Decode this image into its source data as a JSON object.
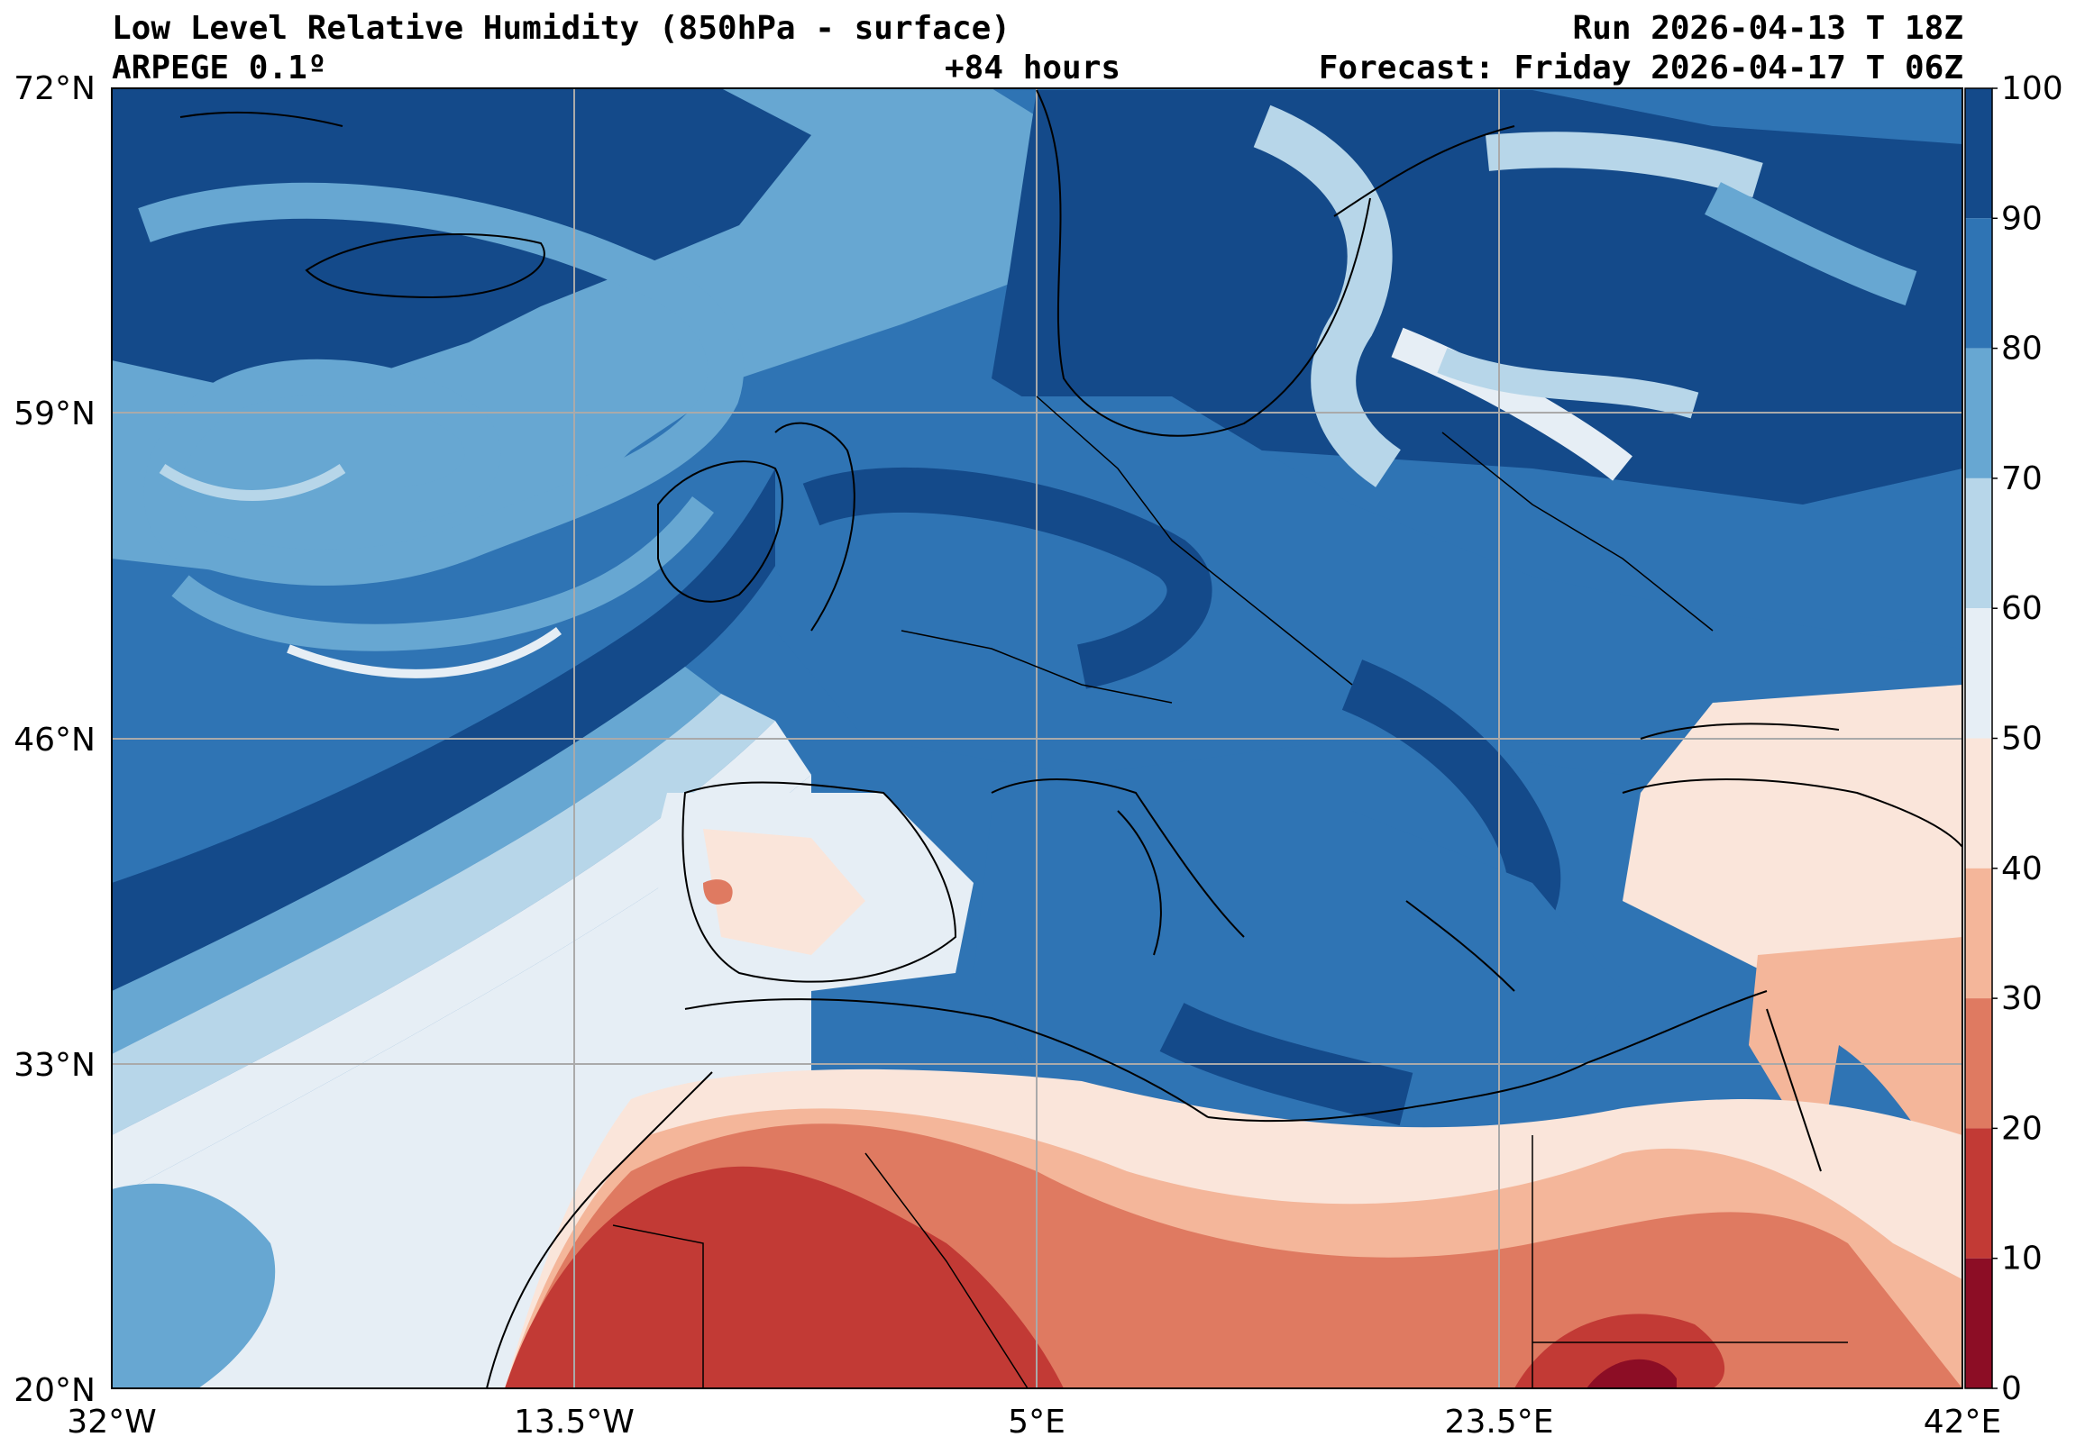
{
  "header": {
    "title": "Low Level Relative Humidity (850hPa - surface)",
    "model": "ARPEGE 0.1º",
    "lead": "+84 hours",
    "run": "Run 2026-04-13 T 18Z",
    "forecast": "Forecast: Friday 2026-04-17 T 06Z"
  },
  "map": {
    "lat_ticks": [
      "72°N",
      "59°N",
      "46°N",
      "33°N",
      "20°N"
    ],
    "lon_ticks": [
      "32°W",
      "13.5°W",
      "5°E",
      "23.5°E",
      "42°E"
    ],
    "lat_range": [
      20,
      72
    ],
    "lon_range": [
      -32,
      42
    ],
    "gridlines": true
  },
  "colorbar": {
    "levels": [
      "100",
      "90",
      "80",
      "70",
      "60",
      "50",
      "40",
      "30",
      "20",
      "10",
      "0"
    ],
    "colors": [
      "#144a8a",
      "#2f74b4",
      "#67a7d2",
      "#b7d6e9",
      "#e6eef5",
      "#fae5da",
      "#f4b69a",
      "#df7a61",
      "#c23a35",
      "#8c0d25"
    ],
    "colors_top_to_bottom_note": ""
  },
  "palette": {
    "very_wet": "#144a8a",
    "wet": "#2f74b4",
    "moist": "#67a7d2",
    "mild": "#b7d6e9",
    "neutral": "#e6eef5",
    "dryish": "#fae5da",
    "dry": "#f4b69a",
    "very_dry": "#df7a61",
    "arid": "#c23a35",
    "extreme": "#8c0d25"
  }
}
